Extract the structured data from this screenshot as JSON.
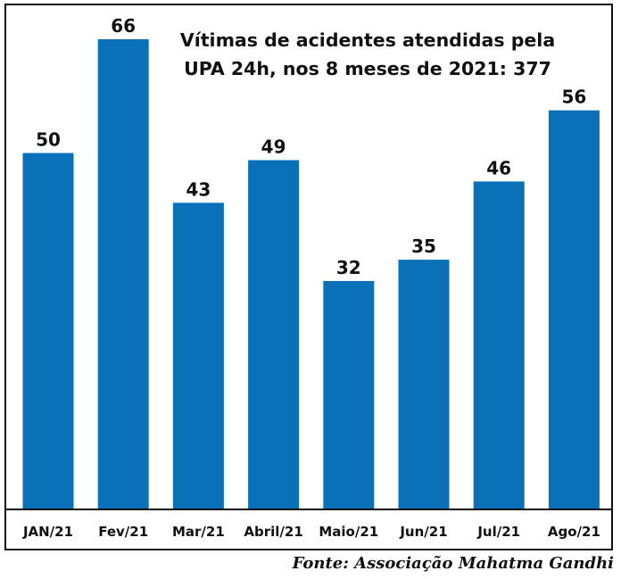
{
  "chart_data": {
    "type": "bar",
    "title_lines": [
      "Vítimas de acidentes atendidas pela",
      "UPA 24h, nos 8 meses de 2021: 377"
    ],
    "categories": [
      "JAN/21",
      "Fev/21",
      "Mar/21",
      "Abril/21",
      "Maio/21",
      "Jun/21",
      "Jul/21",
      "Ago/21"
    ],
    "values": [
      50,
      66,
      43,
      49,
      32,
      35,
      46,
      56
    ],
    "value_labels": [
      "50",
      "66",
      "43",
      "49",
      "32",
      "35",
      "46",
      "56"
    ],
    "ylim": [
      0,
      66
    ],
    "grid": false,
    "legend": "none",
    "bar_color": "#0a71b8"
  },
  "source": "Fonte: Associação Mahatma Gandhi"
}
